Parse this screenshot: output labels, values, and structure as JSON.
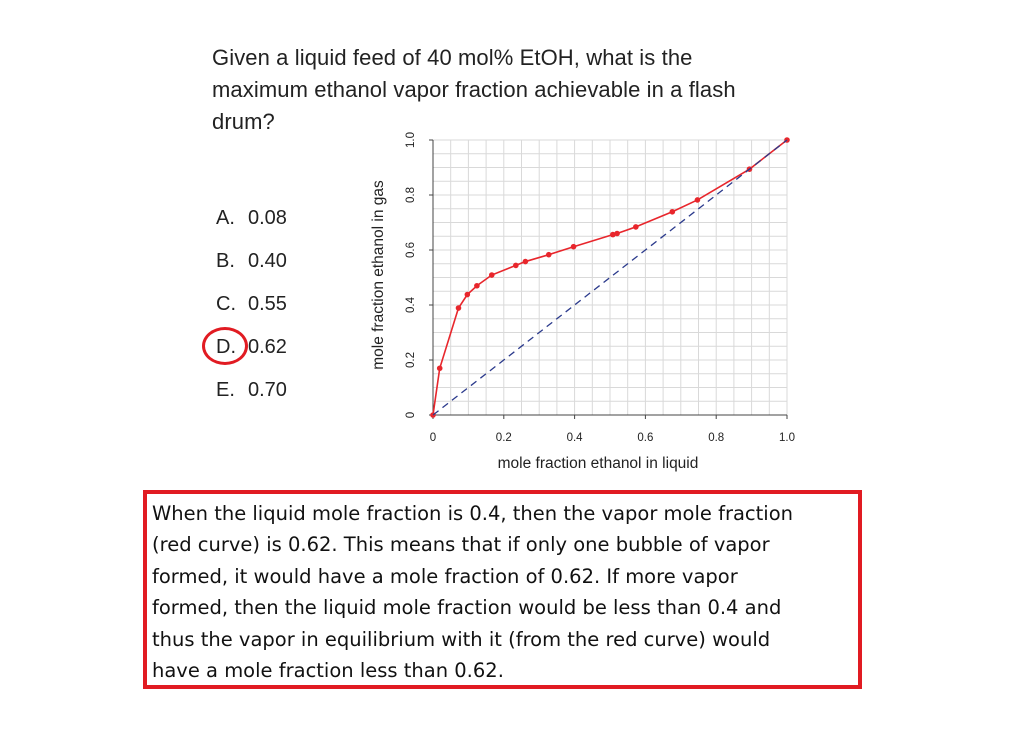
{
  "question": {
    "lines": [
      "Given a liquid feed of 40 mol% EtOH, what is the",
      "maximum ethanol vapor fraction achievable in a flash",
      "drum?"
    ]
  },
  "options": [
    {
      "letter": "A.",
      "value": "0.08",
      "selected": false
    },
    {
      "letter": "B.",
      "value": "0.40",
      "selected": false
    },
    {
      "letter": "C.",
      "value": "0.55",
      "selected": false
    },
    {
      "letter": "D.",
      "value": "0.62",
      "selected": true
    },
    {
      "letter": "E.",
      "value": "0.70",
      "selected": false
    }
  ],
  "colors": {
    "accent_red": "#e11b22",
    "curve_red": "#e8262c",
    "diagonal_blue": "#2b3a8c",
    "grid": "#d9d9d9"
  },
  "chart_data": {
    "type": "line",
    "title": "",
    "xlabel": "mole fraction ethanol in liquid",
    "ylabel": "mole fraction ethanol in gas",
    "xlim": [
      0,
      1.0
    ],
    "ylim": [
      0,
      1.0
    ],
    "x_ticks": [
      "0",
      "0.2",
      "0.4",
      "0.6",
      "0.8",
      "1.0"
    ],
    "y_ticks": [
      "0",
      "0.2",
      "0.4",
      "0.6",
      "0.8",
      "1.0"
    ],
    "grid": true,
    "series": [
      {
        "style": "line-with-markers",
        "color": "#e8262c",
        "x": [
          0.0,
          0.019,
          0.072,
          0.097,
          0.124,
          0.166,
          0.234,
          0.261,
          0.327,
          0.397,
          0.508,
          0.52,
          0.573,
          0.676,
          0.747,
          0.894,
          1.0
        ],
        "y": [
          0.0,
          0.17,
          0.389,
          0.438,
          0.47,
          0.509,
          0.544,
          0.558,
          0.583,
          0.612,
          0.656,
          0.66,
          0.684,
          0.739,
          0.782,
          0.894,
          1.0
        ]
      },
      {
        "style": "dashed-line",
        "color": "#2b3a8c",
        "x": [
          0,
          1.0
        ],
        "y": [
          0,
          1.0
        ]
      }
    ]
  },
  "explanation": {
    "lines": [
      "When the liquid mole fraction is 0.4, then the vapor mole fraction",
      "(red curve) is 0.62. This means that if only one bubble of vapor",
      "formed, it would have a mole fraction of 0.62. If more vapor",
      "formed, then the liquid mole fraction would be less than 0.4 and",
      "thus the vapor in equilibrium with it (from the red curve) would",
      "have a mole fraction less than 0.62."
    ]
  }
}
